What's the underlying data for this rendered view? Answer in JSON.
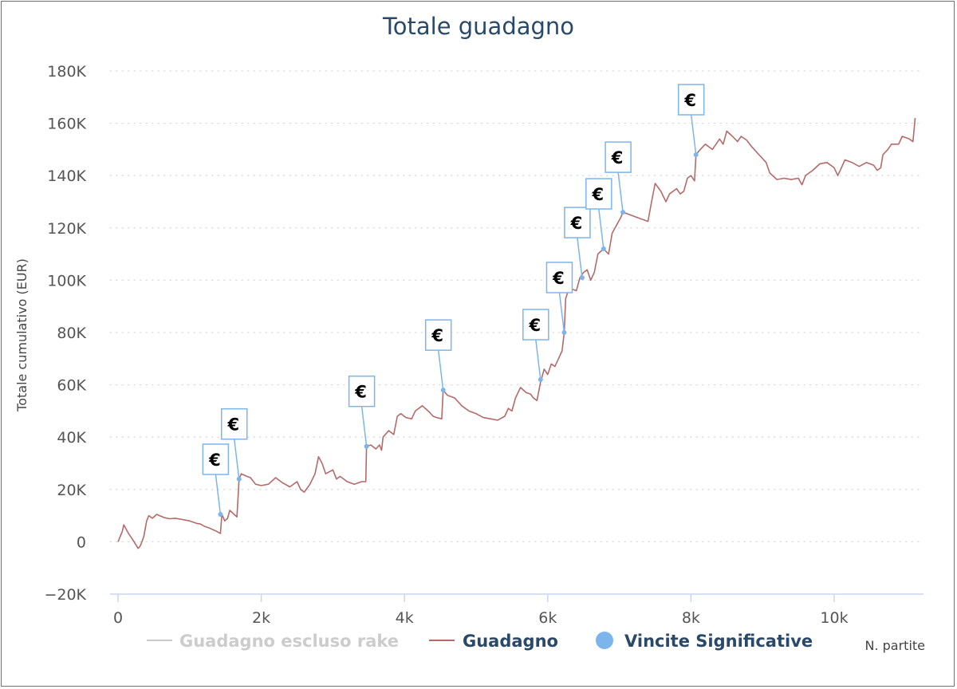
{
  "chart_data": {
    "type": "line",
    "title": "Totale guadagno",
    "ylabel": "Totale cumulativo (EUR)",
    "xlabel": "N. partite",
    "xlim": [
      0,
      11200
    ],
    "ylim": [
      -20000,
      180000
    ],
    "x_ticks": [
      0,
      2000,
      4000,
      6000,
      8000,
      10000
    ],
    "x_tick_labels": [
      "0",
      "2k",
      "4k",
      "6k",
      "8k",
      "10k"
    ],
    "y_ticks": [
      -20000,
      0,
      20000,
      40000,
      60000,
      80000,
      100000,
      120000,
      140000,
      160000,
      180000
    ],
    "y_tick_labels": [
      "−20K",
      "0",
      "20K",
      "40K",
      "60K",
      "80K",
      "100K",
      "120K",
      "140K",
      "160K",
      "180K"
    ],
    "grid": "horizontal dotted",
    "legend_position": "bottom",
    "legend": [
      {
        "name": "Guadagno escluso rake",
        "color": "#cccccc",
        "marker": "line"
      },
      {
        "name": "Guadagno",
        "color": "#b56a6a",
        "marker": "line"
      },
      {
        "name": "Vincite Significative",
        "color": "#7cb5ec",
        "marker": "dot"
      }
    ],
    "series": [
      {
        "name": "Guadagno",
        "color": "#b56a6a",
        "points": [
          [
            0,
            0
          ],
          [
            60,
            4000
          ],
          [
            80,
            6500
          ],
          [
            150,
            3000
          ],
          [
            200,
            1000
          ],
          [
            280,
            -2500
          ],
          [
            300,
            -2000
          ],
          [
            320,
            -1000
          ],
          [
            360,
            2000
          ],
          [
            400,
            8000
          ],
          [
            430,
            10000
          ],
          [
            480,
            9000
          ],
          [
            540,
            10500
          ],
          [
            580,
            10000
          ],
          [
            650,
            9200
          ],
          [
            720,
            8800
          ],
          [
            800,
            9000
          ],
          [
            900,
            8500
          ],
          [
            1000,
            8000
          ],
          [
            1100,
            7000
          ],
          [
            1150,
            6800
          ],
          [
            1200,
            6000
          ],
          [
            1280,
            5200
          ],
          [
            1360,
            4200
          ],
          [
            1430,
            3200
          ],
          [
            1450,
            10500
          ],
          [
            1490,
            8000
          ],
          [
            1530,
            9000
          ],
          [
            1560,
            12000
          ],
          [
            1620,
            10500
          ],
          [
            1660,
            9500
          ],
          [
            1690,
            24000
          ],
          [
            1720,
            26000
          ],
          [
            1800,
            25000
          ],
          [
            1850,
            24500
          ],
          [
            1920,
            22000
          ],
          [
            2000,
            21500
          ],
          [
            2100,
            22000
          ],
          [
            2200,
            24500
          ],
          [
            2300,
            22500
          ],
          [
            2400,
            21000
          ],
          [
            2500,
            23000
          ],
          [
            2550,
            20000
          ],
          [
            2600,
            19000
          ],
          [
            2680,
            22000
          ],
          [
            2750,
            26000
          ],
          [
            2800,
            32500
          ],
          [
            2850,
            30000
          ],
          [
            2900,
            26000
          ],
          [
            3000,
            27500
          ],
          [
            3050,
            24000
          ],
          [
            3100,
            25000
          ],
          [
            3200,
            23000
          ],
          [
            3300,
            22000
          ],
          [
            3400,
            23000
          ],
          [
            3460,
            23000
          ],
          [
            3470,
            36500
          ],
          [
            3530,
            37000
          ],
          [
            3600,
            35500
          ],
          [
            3650,
            37000
          ],
          [
            3680,
            35000
          ],
          [
            3700,
            40000
          ],
          [
            3780,
            42500
          ],
          [
            3850,
            41000
          ],
          [
            3900,
            48000
          ],
          [
            3950,
            49000
          ],
          [
            4020,
            47500
          ],
          [
            4100,
            47000
          ],
          [
            4150,
            50000
          ],
          [
            4250,
            52000
          ],
          [
            4350,
            49500
          ],
          [
            4400,
            48000
          ],
          [
            4450,
            47500
          ],
          [
            4520,
            47000
          ],
          [
            4540,
            58000
          ],
          [
            4600,
            56000
          ],
          [
            4700,
            55000
          ],
          [
            4800,
            52000
          ],
          [
            4900,
            50000
          ],
          [
            5000,
            49000
          ],
          [
            5100,
            47500
          ],
          [
            5200,
            47000
          ],
          [
            5300,
            46500
          ],
          [
            5400,
            48000
          ],
          [
            5450,
            51000
          ],
          [
            5500,
            50000
          ],
          [
            5550,
            55000
          ],
          [
            5620,
            59000
          ],
          [
            5700,
            57000
          ],
          [
            5760,
            56500
          ],
          [
            5800,
            55000
          ],
          [
            5850,
            54000
          ],
          [
            5900,
            61000
          ],
          [
            5950,
            66000
          ],
          [
            6000,
            64000
          ],
          [
            6050,
            68000
          ],
          [
            6100,
            67000
          ],
          [
            6150,
            70000
          ],
          [
            6200,
            73000
          ],
          [
            6230,
            80000
          ],
          [
            6250,
            93000
          ],
          [
            6300,
            97000
          ],
          [
            6400,
            96000
          ],
          [
            6450,
            101000
          ],
          [
            6500,
            103000
          ],
          [
            6550,
            104000
          ],
          [
            6600,
            100000
          ],
          [
            6650,
            103000
          ],
          [
            6700,
            110000
          ],
          [
            6780,
            112000
          ],
          [
            6850,
            110000
          ],
          [
            6900,
            118000
          ],
          [
            6960,
            121000
          ],
          [
            7020,
            124000
          ],
          [
            7050,
            126000
          ],
          [
            7150,
            125000
          ],
          [
            7250,
            124000
          ],
          [
            7350,
            123000
          ],
          [
            7400,
            122500
          ],
          [
            7450,
            130000
          ],
          [
            7500,
            137000
          ],
          [
            7580,
            134000
          ],
          [
            7650,
            130000
          ],
          [
            7700,
            133000
          ],
          [
            7800,
            135000
          ],
          [
            7850,
            133000
          ],
          [
            7900,
            134000
          ],
          [
            7950,
            139000
          ],
          [
            8000,
            140000
          ],
          [
            8050,
            138000
          ],
          [
            8070,
            148000
          ],
          [
            8130,
            150000
          ],
          [
            8200,
            152000
          ],
          [
            8300,
            150000
          ],
          [
            8400,
            154000
          ],
          [
            8450,
            152000
          ],
          [
            8500,
            157000
          ],
          [
            8580,
            155000
          ],
          [
            8650,
            153000
          ],
          [
            8700,
            155000
          ],
          [
            8780,
            153500
          ],
          [
            8850,
            151000
          ],
          [
            8950,
            148000
          ],
          [
            9050,
            145000
          ],
          [
            9100,
            141000
          ],
          [
            9200,
            138500
          ],
          [
            9300,
            139000
          ],
          [
            9400,
            138500
          ],
          [
            9500,
            139000
          ],
          [
            9550,
            136500
          ],
          [
            9600,
            140000
          ],
          [
            9700,
            142000
          ],
          [
            9800,
            144500
          ],
          [
            9900,
            145000
          ],
          [
            10000,
            143000
          ],
          [
            10050,
            140000
          ],
          [
            10100,
            143000
          ],
          [
            10150,
            146000
          ],
          [
            10250,
            145000
          ],
          [
            10350,
            143500
          ],
          [
            10450,
            145000
          ],
          [
            10550,
            144000
          ],
          [
            10600,
            142000
          ],
          [
            10650,
            143000
          ],
          [
            10680,
            148000
          ],
          [
            10750,
            150000
          ],
          [
            10800,
            152000
          ],
          [
            10900,
            152000
          ],
          [
            10950,
            155000
          ],
          [
            11050,
            154000
          ],
          [
            11100,
            153000
          ],
          [
            11130,
            162000
          ]
        ]
      }
    ],
    "significant_wins": {
      "name": "Vincite Significative",
      "color": "#7cb5ec",
      "label": "€",
      "points": [
        [
          1430,
          10500
        ],
        [
          1690,
          24000
        ],
        [
          3470,
          36500
        ],
        [
          4540,
          58000
        ],
        [
          5900,
          62000
        ],
        [
          6230,
          80000
        ],
        [
          6480,
          101000
        ],
        [
          6780,
          112000
        ],
        [
          7050,
          126000
        ],
        [
          8070,
          148000
        ]
      ]
    }
  }
}
